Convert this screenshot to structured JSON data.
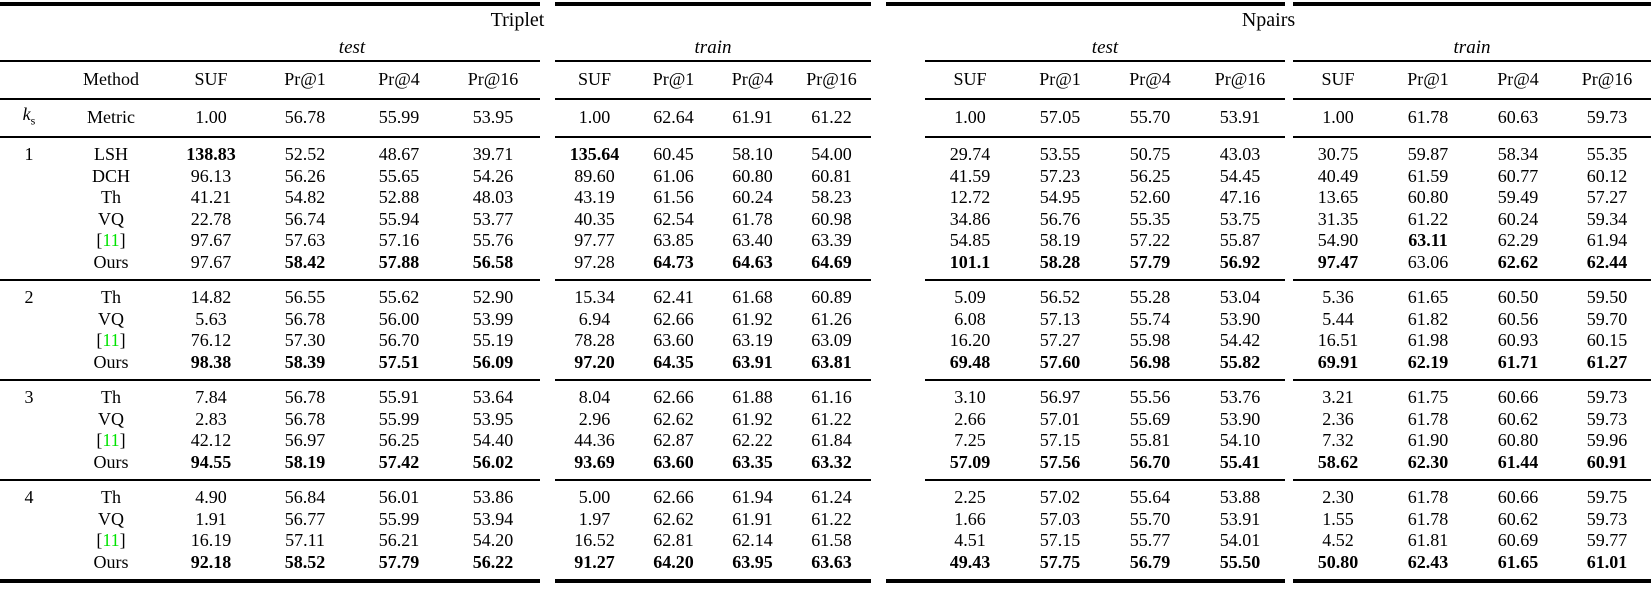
{
  "colors": {
    "citation": "#00e400",
    "text": "#000000",
    "background": "#ffffff"
  },
  "table": {
    "group_headers": [
      "Triplet",
      "Npairs"
    ],
    "subheaders": [
      "test",
      "train",
      "test",
      "train"
    ],
    "method_header": "Method",
    "metric_columns": [
      "SUF",
      "Pr@1",
      "Pr@4",
      "Pr@16"
    ],
    "ks_symbol": "k",
    "ks_subscript": "s",
    "metric_row": {
      "label": "Metric",
      "values": [
        "1.00",
        "56.78",
        "55.99",
        "53.95",
        "1.00",
        "62.64",
        "61.91",
        "61.22",
        "1.00",
        "57.05",
        "55.70",
        "53.91",
        "1.00",
        "61.78",
        "60.63",
        "59.73"
      ]
    },
    "groups": [
      {
        "ks": "1",
        "rows": [
          {
            "method": "LSH",
            "citation": false,
            "values": [
              "138.83",
              "52.52",
              "48.67",
              "39.71",
              "135.64",
              "60.45",
              "58.10",
              "54.00",
              "29.74",
              "53.55",
              "50.75",
              "43.03",
              "30.75",
              "59.87",
              "58.34",
              "55.35"
            ],
            "bold": [
              1,
              0,
              0,
              0,
              1,
              0,
              0,
              0,
              0,
              0,
              0,
              0,
              0,
              0,
              0,
              0
            ]
          },
          {
            "method": "DCH",
            "citation": false,
            "values": [
              "96.13",
              "56.26",
              "55.65",
              "54.26",
              "89.60",
              "61.06",
              "60.80",
              "60.81",
              "41.59",
              "57.23",
              "56.25",
              "54.45",
              "40.49",
              "61.59",
              "60.77",
              "60.12"
            ],
            "bold": [
              0,
              0,
              0,
              0,
              0,
              0,
              0,
              0,
              0,
              0,
              0,
              0,
              0,
              0,
              0,
              0
            ]
          },
          {
            "method": "Th",
            "citation": false,
            "values": [
              "41.21",
              "54.82",
              "52.88",
              "48.03",
              "43.19",
              "61.56",
              "60.24",
              "58.23",
              "12.72",
              "54.95",
              "52.60",
              "47.16",
              "13.65",
              "60.80",
              "59.49",
              "57.27"
            ],
            "bold": [
              0,
              0,
              0,
              0,
              0,
              0,
              0,
              0,
              0,
              0,
              0,
              0,
              0,
              0,
              0,
              0
            ]
          },
          {
            "method": "VQ",
            "citation": false,
            "values": [
              "22.78",
              "56.74",
              "55.94",
              "53.77",
              "40.35",
              "62.54",
              "61.78",
              "60.98",
              "34.86",
              "56.76",
              "55.35",
              "53.75",
              "31.35",
              "61.22",
              "60.24",
              "59.34"
            ],
            "bold": [
              0,
              0,
              0,
              0,
              0,
              0,
              0,
              0,
              0,
              0,
              0,
              0,
              0,
              0,
              0,
              0
            ]
          },
          {
            "method": "[11]",
            "citation": true,
            "citation_text": "11",
            "values": [
              "97.67",
              "57.63",
              "57.16",
              "55.76",
              "97.77",
              "63.85",
              "63.40",
              "63.39",
              "54.85",
              "58.19",
              "57.22",
              "55.87",
              "54.90",
              "63.11",
              "62.29",
              "61.94"
            ],
            "bold": [
              0,
              0,
              0,
              0,
              0,
              0,
              0,
              0,
              0,
              0,
              0,
              0,
              0,
              1,
              0,
              0
            ]
          },
          {
            "method": "Ours",
            "citation": false,
            "values": [
              "97.67",
              "58.42",
              "57.88",
              "56.58",
              "97.28",
              "64.73",
              "64.63",
              "64.69",
              "101.1",
              "58.28",
              "57.79",
              "56.92",
              "97.47",
              "63.06",
              "62.62",
              "62.44"
            ],
            "bold": [
              0,
              1,
              1,
              1,
              0,
              1,
              1,
              1,
              1,
              1,
              1,
              1,
              1,
              0,
              1,
              1
            ]
          }
        ]
      },
      {
        "ks": "2",
        "rows": [
          {
            "method": "Th",
            "citation": false,
            "values": [
              "14.82",
              "56.55",
              "55.62",
              "52.90",
              "15.34",
              "62.41",
              "61.68",
              "60.89",
              "5.09",
              "56.52",
              "55.28",
              "53.04",
              "5.36",
              "61.65",
              "60.50",
              "59.50"
            ],
            "bold": [
              0,
              0,
              0,
              0,
              0,
              0,
              0,
              0,
              0,
              0,
              0,
              0,
              0,
              0,
              0,
              0
            ]
          },
          {
            "method": "VQ",
            "citation": false,
            "values": [
              "5.63",
              "56.78",
              "56.00",
              "53.99",
              "6.94",
              "62.66",
              "61.92",
              "61.26",
              "6.08",
              "57.13",
              "55.74",
              "53.90",
              "5.44",
              "61.82",
              "60.56",
              "59.70"
            ],
            "bold": [
              0,
              0,
              0,
              0,
              0,
              0,
              0,
              0,
              0,
              0,
              0,
              0,
              0,
              0,
              0,
              0
            ]
          },
          {
            "method": "[11]",
            "citation": true,
            "citation_text": "11",
            "values": [
              "76.12",
              "57.30",
              "56.70",
              "55.19",
              "78.28",
              "63.60",
              "63.19",
              "63.09",
              "16.20",
              "57.27",
              "55.98",
              "54.42",
              "16.51",
              "61.98",
              "60.93",
              "60.15"
            ],
            "bold": [
              0,
              0,
              0,
              0,
              0,
              0,
              0,
              0,
              0,
              0,
              0,
              0,
              0,
              0,
              0,
              0
            ]
          },
          {
            "method": "Ours",
            "citation": false,
            "values": [
              "98.38",
              "58.39",
              "57.51",
              "56.09",
              "97.20",
              "64.35",
              "63.91",
              "63.81",
              "69.48",
              "57.60",
              "56.98",
              "55.82",
              "69.91",
              "62.19",
              "61.71",
              "61.27"
            ],
            "bold": [
              1,
              1,
              1,
              1,
              1,
              1,
              1,
              1,
              1,
              1,
              1,
              1,
              1,
              1,
              1,
              1
            ]
          }
        ]
      },
      {
        "ks": "3",
        "rows": [
          {
            "method": "Th",
            "citation": false,
            "values": [
              "7.84",
              "56.78",
              "55.91",
              "53.64",
              "8.04",
              "62.66",
              "61.88",
              "61.16",
              "3.10",
              "56.97",
              "55.56",
              "53.76",
              "3.21",
              "61.75",
              "60.66",
              "59.73"
            ],
            "bold": [
              0,
              0,
              0,
              0,
              0,
              0,
              0,
              0,
              0,
              0,
              0,
              0,
              0,
              0,
              0,
              0
            ]
          },
          {
            "method": "VQ",
            "citation": false,
            "values": [
              "2.83",
              "56.78",
              "55.99",
              "53.95",
              "2.96",
              "62.62",
              "61.92",
              "61.22",
              "2.66",
              "57.01",
              "55.69",
              "53.90",
              "2.36",
              "61.78",
              "60.62",
              "59.73"
            ],
            "bold": [
              0,
              0,
              0,
              0,
              0,
              0,
              0,
              0,
              0,
              0,
              0,
              0,
              0,
              0,
              0,
              0
            ]
          },
          {
            "method": "[11]",
            "citation": true,
            "citation_text": "11",
            "values": [
              "42.12",
              "56.97",
              "56.25",
              "54.40",
              "44.36",
              "62.87",
              "62.22",
              "61.84",
              "7.25",
              "57.15",
              "55.81",
              "54.10",
              "7.32",
              "61.90",
              "60.80",
              "59.96"
            ],
            "bold": [
              0,
              0,
              0,
              0,
              0,
              0,
              0,
              0,
              0,
              0,
              0,
              0,
              0,
              0,
              0,
              0
            ]
          },
          {
            "method": "Ours",
            "citation": false,
            "values": [
              "94.55",
              "58.19",
              "57.42",
              "56.02",
              "93.69",
              "63.60",
              "63.35",
              "63.32",
              "57.09",
              "57.56",
              "56.70",
              "55.41",
              "58.62",
              "62.30",
              "61.44",
              "60.91"
            ],
            "bold": [
              1,
              1,
              1,
              1,
              1,
              1,
              1,
              1,
              1,
              1,
              1,
              1,
              1,
              1,
              1,
              1
            ]
          }
        ]
      },
      {
        "ks": "4",
        "rows": [
          {
            "method": "Th",
            "citation": false,
            "values": [
              "4.90",
              "56.84",
              "56.01",
              "53.86",
              "5.00",
              "62.66",
              "61.94",
              "61.24",
              "2.25",
              "57.02",
              "55.64",
              "53.88",
              "2.30",
              "61.78",
              "60.66",
              "59.75"
            ],
            "bold": [
              0,
              0,
              0,
              0,
              0,
              0,
              0,
              0,
              0,
              0,
              0,
              0,
              0,
              0,
              0,
              0
            ]
          },
          {
            "method": "VQ",
            "citation": false,
            "values": [
              "1.91",
              "56.77",
              "55.99",
              "53.94",
              "1.97",
              "62.62",
              "61.91",
              "61.22",
              "1.66",
              "57.03",
              "55.70",
              "53.91",
              "1.55",
              "61.78",
              "60.62",
              "59.73"
            ],
            "bold": [
              0,
              0,
              0,
              0,
              0,
              0,
              0,
              0,
              0,
              0,
              0,
              0,
              0,
              0,
              0,
              0
            ]
          },
          {
            "method": "[11]",
            "citation": true,
            "citation_text": "11",
            "values": [
              "16.19",
              "57.11",
              "56.21",
              "54.20",
              "16.52",
              "62.81",
              "62.14",
              "61.58",
              "4.51",
              "57.15",
              "55.77",
              "54.01",
              "4.52",
              "61.81",
              "60.69",
              "59.77"
            ],
            "bold": [
              0,
              0,
              0,
              0,
              0,
              0,
              0,
              0,
              0,
              0,
              0,
              0,
              0,
              0,
              0,
              0
            ]
          },
          {
            "method": "Ours",
            "citation": false,
            "values": [
              "92.18",
              "58.52",
              "57.79",
              "56.22",
              "91.27",
              "64.20",
              "63.95",
              "63.63",
              "49.43",
              "57.75",
              "56.79",
              "55.50",
              "50.80",
              "62.43",
              "61.65",
              "61.01"
            ],
            "bold": [
              1,
              1,
              1,
              1,
              1,
              1,
              1,
              1,
              1,
              1,
              1,
              1,
              1,
              1,
              1,
              1
            ]
          }
        ]
      }
    ]
  }
}
